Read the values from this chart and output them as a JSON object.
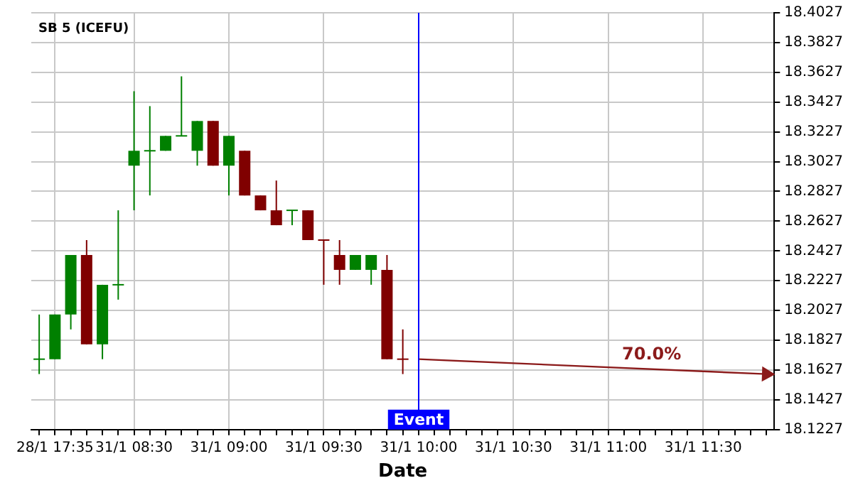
{
  "chart_data": {
    "type": "candlestick",
    "title": "SB 5 (ICEFU)",
    "xlabel": "Date",
    "categories": [
      null,
      "28/1 17:35",
      null,
      null,
      null,
      null,
      "31/1 08:30",
      null,
      null,
      null,
      null,
      null,
      "31/1 09:00",
      null,
      null,
      null,
      null,
      null,
      "31/1 09:30",
      null,
      null,
      null,
      null,
      null,
      "31/1 10:00",
      null,
      null,
      null,
      null,
      null,
      "31/1 10:30",
      null,
      null,
      null,
      null,
      null,
      "31/1 11:00",
      null,
      null,
      null,
      null,
      null,
      "31/1 11:30",
      null,
      null,
      null,
      null
    ],
    "ohlc": [
      [
        18.17,
        18.2,
        18.16,
        18.17
      ],
      [
        18.17,
        18.2,
        18.17,
        18.2
      ],
      [
        18.2,
        18.24,
        18.19,
        18.24
      ],
      [
        18.24,
        18.25,
        18.18,
        18.18
      ],
      [
        18.18,
        18.22,
        18.17,
        18.22
      ],
      [
        18.22,
        18.27,
        18.21,
        18.22
      ],
      [
        18.3,
        18.35,
        18.27,
        18.31
      ],
      [
        18.31,
        18.34,
        18.28,
        18.31
      ],
      [
        18.31,
        18.32,
        18.31,
        18.32
      ],
      [
        18.32,
        18.36,
        18.32,
        18.32
      ],
      [
        18.31,
        18.33,
        18.3,
        18.33
      ],
      [
        18.33,
        18.33,
        18.3,
        18.3
      ],
      [
        18.3,
        18.32,
        18.28,
        18.32
      ],
      [
        18.31,
        18.31,
        18.28,
        18.28
      ],
      [
        18.28,
        18.28,
        18.27,
        18.27
      ],
      [
        18.27,
        18.29,
        18.26,
        18.26
      ],
      [
        18.27,
        18.27,
        18.26,
        18.27
      ],
      [
        18.27,
        18.27,
        18.25,
        18.25
      ],
      [
        18.25,
        18.25,
        18.22,
        18.25
      ],
      [
        18.24,
        18.25,
        18.22,
        18.23
      ],
      [
        18.23,
        18.24,
        18.23,
        18.24
      ],
      [
        18.23,
        18.24,
        18.22,
        18.24
      ],
      [
        18.23,
        18.24,
        18.17,
        18.17
      ],
      [
        18.17,
        18.19,
        18.16,
        18.17
      ],
      null,
      null,
      null,
      null,
      null,
      null,
      null,
      null,
      null,
      null,
      null,
      null,
      null,
      null,
      null,
      null,
      null,
      null,
      null,
      null,
      null,
      null,
      null
    ],
    "colors": [
      "#008000",
      "#008000",
      "#008000",
      "#800000",
      "#008000",
      "#008000",
      "#008000",
      "#008000",
      "#008000",
      "#008000",
      "#008000",
      "#800000",
      "#008000",
      "#800000",
      "#800000",
      "#800000",
      "#008000",
      "#800000",
      "#800000",
      "#800000",
      "#008000",
      "#008000",
      "#800000",
      "#800000",
      null,
      null,
      null,
      null,
      null,
      null,
      null,
      null,
      null,
      null,
      null,
      null,
      null,
      null,
      null,
      null,
      null,
      null,
      null,
      null,
      null,
      null,
      null
    ],
    "series": [
      {
        "type": "line",
        "color": "#8b1a1a",
        "values": [
          null,
          null,
          null,
          null,
          null,
          null,
          null,
          null,
          null,
          null,
          null,
          null,
          null,
          null,
          null,
          null,
          null,
          null,
          null,
          null,
          null,
          null,
          null,
          null,
          18.17,
          null,
          null,
          null,
          null,
          null,
          null,
          null,
          null,
          null,
          null,
          null,
          null,
          null,
          null,
          null,
          null,
          null,
          null,
          null,
          null,
          null,
          18.16
        ]
      }
    ],
    "annotations": [
      "70.0%"
    ],
    "ref_lines": [
      {
        "axis": "x",
        "value": "31/1 10:00",
        "label": "Event",
        "color": "#0000ff"
      }
    ],
    "ylim": [
      18.1227,
      18.4027
    ],
    "yticks": [
      18.1227,
      18.1427,
      18.1627,
      18.1827,
      18.2027,
      18.2227,
      18.2427,
      18.2627,
      18.2827,
      18.3027,
      18.3227,
      18.3427,
      18.3627,
      18.3827,
      18.4027
    ],
    "grid": true,
    "legend": false
  }
}
